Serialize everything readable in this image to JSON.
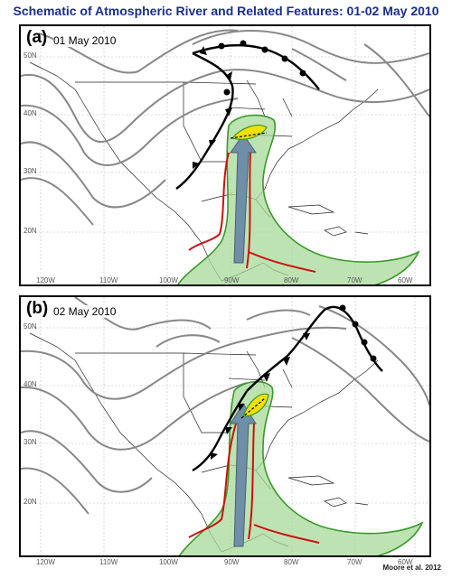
{
  "title": "Schematic of Atmospheric River and Related Features: 01-02 May 2010",
  "credit": "Moore et al. 2012",
  "panels": [
    {
      "label": "(a)",
      "date": "01 May 2010"
    },
    {
      "label": "(b)",
      "date": "02 May 2010"
    }
  ],
  "latitude_labels": [
    "50N",
    "40N",
    "30N",
    "20N"
  ],
  "longitude_labels": [
    "120W",
    "110W",
    "100W",
    "90W",
    "80W",
    "70W",
    "60W"
  ],
  "colors": {
    "title": "#1a2f8a",
    "geopotential_contours": "#888888",
    "moisture_plume_fill": "#a8d99a",
    "moisture_plume_edge": "#3a9a2a",
    "llj_arrow": "#6f8ea8",
    "trajectory": "#cc1111",
    "front": "#000000",
    "precip_max": "#f2e000"
  }
}
